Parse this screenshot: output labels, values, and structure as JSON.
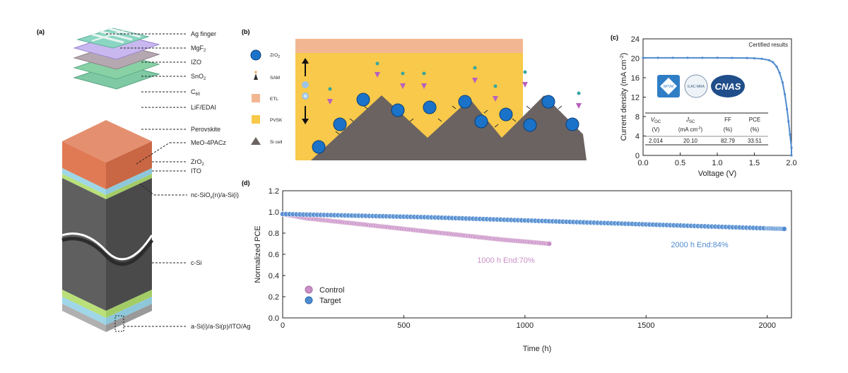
{
  "panel_a": {
    "label": "(a)",
    "layers": [
      "Ag finger",
      "MgF",
      "IZO",
      "SnO",
      "C",
      "LiF/EDAI",
      "Perovskite",
      "MeO-4PACz",
      "ZrO",
      "ITO",
      "nc-SiO",
      "c-Si",
      "a-Si(i)/a-Si(p)/ITO/Ag"
    ],
    "sub": {
      "mgf": "2",
      "sno": "2",
      "c60": "60",
      "zro": "2",
      "sio": "x",
      "sio_tail": "(n)/a-Si(i)"
    }
  },
  "panel_b": {
    "label": "(b)",
    "legend": [
      "ZrO",
      "SAM",
      "ETL",
      "PVSK",
      "Si cell"
    ],
    "zro_sub": "2",
    "colors": {
      "etl": "#f2b792",
      "pvsk": "#f8c94a",
      "si": "#6a6361",
      "zro": "#1a73c9",
      "sam": "#b85fc0"
    }
  },
  "panel_c": {
    "label": "(c)",
    "annotation": "Certified results",
    "logo_cnas": "CNAS",
    "logo_npvm": "NPVM",
    "logo_ilac": "ILAC-MRA",
    "table": {
      "headers": [
        "V",
        "J",
        "FF",
        "PCE"
      ],
      "header_subs": [
        "OC",
        "SC",
        "",
        ""
      ],
      "units": [
        "(V)",
        "(mA cm",
        "(%)",
        "(%)"
      ],
      "unit_sup": "-2",
      "unit_tail": ")",
      "values": [
        "2.014",
        "20.10",
        "82.79",
        "33.51"
      ]
    },
    "color": "#4f8bd0"
  },
  "panel_d": {
    "label": "(d)",
    "annotations": {
      "control_end": "1000 h End:70%",
      "target_end": "2000 h End:84%"
    }
  },
  "chart_data": [
    {
      "type": "line",
      "panel": "c",
      "xlabel": "Voltage (V)",
      "ylabel": "Current density (mA cm",
      "ylabel_sup": "-2",
      "ylabel_tail": ")",
      "xlim": [
        0.0,
        2.0
      ],
      "ylim": [
        0,
        24
      ],
      "xticks": [
        "0.0",
        "0.5",
        "1.0",
        "1.5",
        "2.0"
      ],
      "yticks": [
        "0",
        "4",
        "8",
        "12",
        "16",
        "20",
        "24"
      ],
      "series": [
        {
          "x": [
            0.0,
            0.2,
            0.4,
            0.6,
            0.8,
            1.0,
            1.2,
            1.4,
            1.5,
            1.6,
            1.7,
            1.75,
            1.8,
            1.84,
            1.88,
            1.91,
            1.94,
            1.96,
            1.98,
            2.0,
            2.014
          ],
          "y": [
            20.1,
            20.1,
            20.1,
            20.1,
            20.1,
            20.1,
            20.08,
            20.05,
            20.0,
            19.9,
            19.6,
            19.2,
            18.3,
            17.0,
            15.0,
            12.6,
            9.5,
            7.0,
            4.3,
            1.6,
            0.0
          ]
        }
      ]
    },
    {
      "type": "scatter",
      "panel": "d",
      "xlabel": "Time (h)",
      "ylabel": "Normalized PCE",
      "xlim": [
        0,
        2100
      ],
      "ylim": [
        0.0,
        1.2
      ],
      "xticks": [
        "0",
        "500",
        "1000",
        "1500",
        "2000"
      ],
      "yticks": [
        "0.0",
        "0.2",
        "0.4",
        "0.6",
        "0.8",
        "1.0",
        "1.2"
      ],
      "legend": "lower-left",
      "series": [
        {
          "name": "Control",
          "color": "#c98fc6",
          "x": [
            0,
            100,
            200,
            300,
            400,
            500,
            600,
            700,
            800,
            900,
            1000,
            1100
          ],
          "y": [
            0.98,
            0.94,
            0.915,
            0.89,
            0.865,
            0.84,
            0.815,
            0.79,
            0.765,
            0.74,
            0.72,
            0.7
          ]
        },
        {
          "name": "Target",
          "color": "#4f8bd0",
          "x": [
            0,
            200,
            400,
            600,
            800,
            1000,
            1200,
            1400,
            1600,
            1800,
            2000,
            2070
          ],
          "y": [
            0.98,
            0.97,
            0.96,
            0.95,
            0.935,
            0.92,
            0.905,
            0.89,
            0.875,
            0.86,
            0.845,
            0.84
          ]
        }
      ]
    }
  ]
}
